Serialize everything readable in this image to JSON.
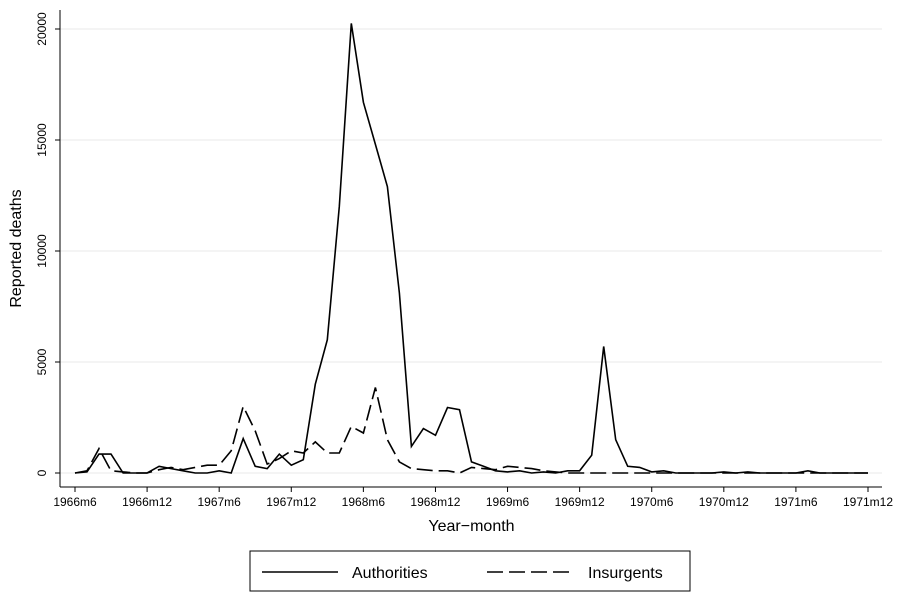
{
  "chart_data": {
    "type": "line",
    "title": "",
    "xlabel": "Year−month",
    "ylabel": "Reported deaths",
    "ylim": [
      0,
      20000
    ],
    "grid": true,
    "legend_position": "bottom",
    "x_ticks": [
      0,
      6,
      12,
      18,
      24,
      30,
      36,
      42,
      48,
      54,
      60,
      66
    ],
    "x_tick_labels": [
      "1966m6",
      "1966m12",
      "1967m6",
      "1967m12",
      "1968m6",
      "1968m12",
      "1969m6",
      "1969m12",
      "1970m6",
      "1970m12",
      "1971m6",
      "1971m12"
    ],
    "y_ticks": [
      0,
      5000,
      10000,
      15000,
      20000
    ],
    "y_tick_labels": [
      "0",
      "5000",
      "10000",
      "15000",
      "20000"
    ],
    "x": [
      "1966m6",
      "1966m7",
      "1966m8",
      "1966m9",
      "1966m10",
      "1966m11",
      "1966m12",
      "1967m1",
      "1967m2",
      "1967m3",
      "1967m4",
      "1967m5",
      "1967m6",
      "1967m7",
      "1967m8",
      "1967m9",
      "1967m10",
      "1967m11",
      "1967m12",
      "1968m1",
      "1968m2",
      "1968m3",
      "1968m4",
      "1968m5",
      "1968m6",
      "1968m7",
      "1968m8",
      "1968m9",
      "1968m10",
      "1968m11",
      "1968m12",
      "1969m1",
      "1969m2",
      "1969m3",
      "1969m4",
      "1969m5",
      "1969m6",
      "1969m7",
      "1969m8",
      "1969m9",
      "1969m10",
      "1969m11",
      "1969m12",
      "1970m1",
      "1970m2",
      "1970m3",
      "1970m4",
      "1970m5",
      "1970m6",
      "1970m7",
      "1970m8",
      "1970m9",
      "1970m10",
      "1970m11",
      "1970m12",
      "1971m1",
      "1971m2",
      "1971m3",
      "1971m4",
      "1971m5",
      "1971m6",
      "1971m7",
      "1971m8",
      "1971m9",
      "1971m10",
      "1971m11",
      "1971m12"
    ],
    "series": [
      {
        "name": "Authorities",
        "style": "solid",
        "color": "#000000",
        "values": [
          0,
          50,
          850,
          850,
          0,
          0,
          0,
          300,
          200,
          100,
          0,
          0,
          100,
          0,
          1550,
          300,
          200,
          850,
          350,
          600,
          4000,
          6000,
          12000,
          20250,
          16700,
          14800,
          12900,
          8100,
          1200,
          2000,
          1700,
          2950,
          2850,
          500,
          300,
          100,
          50,
          100,
          0,
          50,
          0,
          100,
          100,
          800,
          5700,
          1500,
          300,
          250,
          50,
          100,
          0,
          0,
          0,
          0,
          50,
          0,
          50,
          0,
          0,
          0,
          0,
          100,
          0,
          0,
          0,
          0,
          0
        ]
      },
      {
        "name": "Insurgents",
        "style": "dashed",
        "color": "#000000",
        "values": [
          0,
          100,
          1100,
          100,
          50,
          0,
          0,
          150,
          250,
          150,
          250,
          350,
          350,
          1000,
          3000,
          1900,
          400,
          650,
          1000,
          900,
          1400,
          900,
          900,
          2100,
          1800,
          3850,
          1500,
          500,
          200,
          150,
          100,
          100,
          0,
          250,
          200,
          150,
          300,
          250,
          200,
          100,
          50,
          0,
          0,
          0,
          0,
          0,
          0,
          0,
          0,
          0,
          0,
          0,
          0,
          0,
          0,
          0,
          0,
          0,
          0,
          0,
          0,
          0,
          0,
          0,
          0,
          0,
          0
        ]
      }
    ]
  }
}
